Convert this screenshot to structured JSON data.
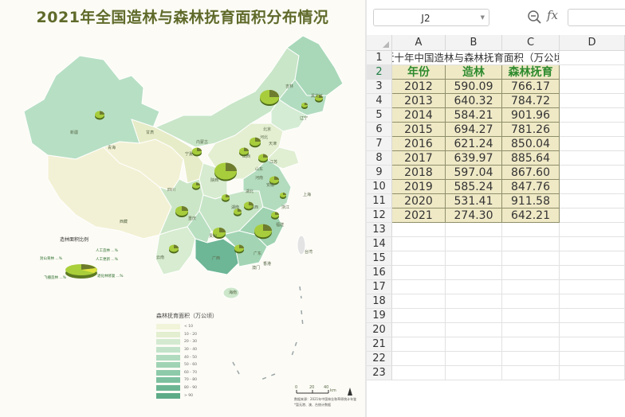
{
  "map": {
    "title": "2021年全国造林与森林抚育面积分布情况",
    "pie_legend_title": "造林面积比例",
    "pie_legend_labels": [
      "人工造林 ...%",
      "人工更新 ...%",
      "封山育林 ...%",
      "飞播造林 ...%",
      "退化林修复 ...%"
    ],
    "legend_title": "森林抚育面积（万公顷）",
    "legend_items": [
      {
        "label": "< 10",
        "color": "#f1f4d9"
      },
      {
        "label": "10 - 20",
        "color": "#e3efd0"
      },
      {
        "label": "20 - 30",
        "color": "#d3ead1"
      },
      {
        "label": "30 - 40",
        "color": "#c2e3c9"
      },
      {
        "label": "40 - 50",
        "color": "#b0dbbe"
      },
      {
        "label": "50 - 60",
        "color": "#9fd3b4"
      },
      {
        "label": "60 - 70",
        "color": "#8dcaaa"
      },
      {
        "label": "70 - 80",
        "color": "#7cc09f"
      },
      {
        "label": "80 - 90",
        "color": "#6cb593"
      },
      {
        "label": "> 90",
        "color": "#5eab88"
      }
    ],
    "scale_labels": [
      "0",
      "20",
      "40",
      "km"
    ],
    "source_lines": [
      "数据来源：2021年中国林业和草原统计年鉴",
      "*暂无港、澳、台统计数据"
    ],
    "province_labels": [
      "新疆",
      "西藏",
      "青海",
      "甘肃",
      "内蒙古",
      "黑龙江",
      "吉林",
      "辽宁",
      "北京",
      "河北",
      "山东",
      "河南",
      "陕西",
      "山西",
      "宁夏",
      "四川",
      "重庆",
      "湖北",
      "湖南",
      "江西",
      "安徽",
      "江苏",
      "上海",
      "浙江",
      "福建",
      "广东",
      "广西",
      "贵州",
      "云南",
      "海南",
      "香港",
      "澳门",
      "台湾",
      "天津"
    ]
  },
  "spreadsheet": {
    "namebox": "J2",
    "fx_label": "fx",
    "columns": [
      "A",
      "B",
      "C",
      "D"
    ],
    "row_numbers": [
      "1",
      "2",
      "3",
      "4",
      "5",
      "6",
      "7",
      "8",
      "9",
      "10",
      "11",
      "12",
      "13",
      "14",
      "15",
      "16",
      "17",
      "18",
      "19",
      "20",
      "21",
      "22",
      "23"
    ],
    "title_cell": "近十年中国造林与森林抚育面积（万公顷）",
    "headers": [
      "年份",
      "造林",
      "森林抚育"
    ],
    "rows": [
      [
        "2012",
        "590.09",
        "766.17"
      ],
      [
        "2013",
        "640.32",
        "784.72"
      ],
      [
        "2014",
        "584.21",
        "901.96"
      ],
      [
        "2015",
        "694.27",
        "781.26"
      ],
      [
        "2016",
        "621.24",
        "850.04"
      ],
      [
        "2017",
        "639.97",
        "885.64"
      ],
      [
        "2018",
        "597.04",
        "867.60"
      ],
      [
        "2019",
        "585.24",
        "847.76"
      ],
      [
        "2020",
        "531.41",
        "911.58"
      ],
      [
        "2021",
        "274.30",
        "642.21"
      ]
    ]
  }
}
